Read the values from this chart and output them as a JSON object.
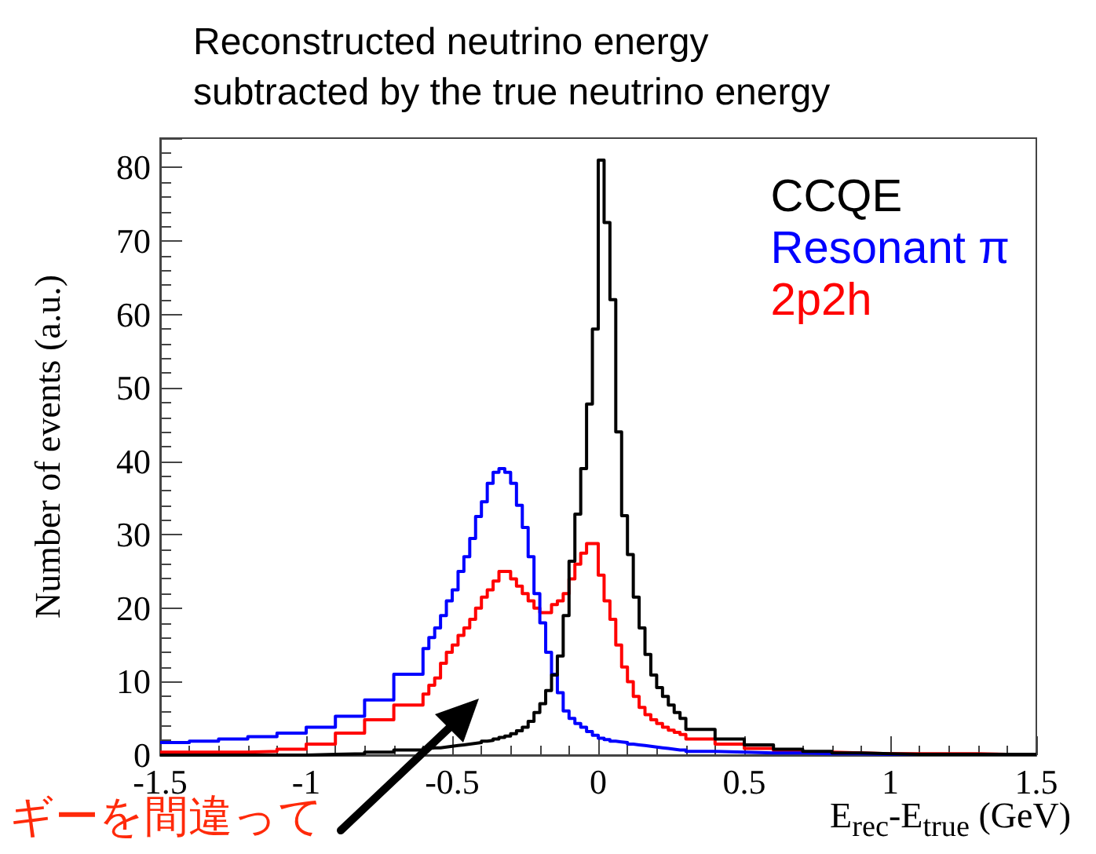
{
  "chart_data": {
    "type": "histogram",
    "title": "Reconstructed neutrino energy\nsubtracted by the true neutrino energy",
    "xlabel": "E$_{rec}$-E$_{true}$ (GeV)",
    "ylabel": "Number of events (a.u.)",
    "annotations": [
      "ギーを間違って"
    ],
    "bins": [
      -1.5,
      -1.4,
      -1.3,
      -1.2,
      -1.1,
      -1.0,
      -0.9,
      -0.8,
      -0.7,
      -0.6,
      -0.58,
      -0.56,
      -0.54,
      -0.52,
      -0.5,
      -0.48,
      -0.46,
      -0.44,
      -0.42,
      -0.4,
      -0.38,
      -0.36,
      -0.34,
      -0.32,
      -0.3,
      -0.28,
      -0.26,
      -0.24,
      -0.22,
      -0.2,
      -0.18,
      -0.16,
      -0.14,
      -0.12,
      -0.1,
      -0.08,
      -0.06,
      -0.04,
      -0.02,
      0,
      0.02,
      0.04,
      0.06,
      0.08,
      0.1,
      0.12,
      0.14,
      0.16,
      0.18,
      0.2,
      0.22,
      0.24,
      0.26,
      0.28,
      0.3,
      0.4,
      0.5,
      0.6,
      0.7,
      0.8,
      0.9,
      1.0,
      1.1,
      1.2,
      1.3,
      1.4,
      1.5
    ],
    "series": [
      {
        "name": "CCQE",
        "color": "#000000",
        "values": [
          0,
          0,
          0,
          0,
          0,
          0.1,
          0.2,
          0.4,
          0.7,
          0.9,
          1.0,
          1.0,
          1.1,
          1.2,
          1.3,
          1.4,
          1.5,
          1.6,
          1.7,
          1.9,
          2.0,
          2.2,
          2.4,
          2.6,
          2.9,
          3.3,
          3.8,
          4.6,
          5.8,
          7,
          8.8,
          10.9,
          13.5,
          19,
          26.4,
          32.8,
          39,
          47.8,
          58,
          81,
          72.5,
          62,
          44,
          32.6,
          27.3,
          21.5,
          17.3,
          13.7,
          10.9,
          9.2,
          8,
          6.8,
          5.8,
          5,
          3.5,
          2.2,
          1.4,
          0.8,
          0.5,
          0.3,
          0.2,
          0.1,
          0.1,
          0.1,
          0.1,
          0.1
        ]
      },
      {
        "name": "Resonant π",
        "color": "#0000ff",
        "values": [
          1.7,
          1.9,
          2.2,
          2.5,
          3,
          3.8,
          5.3,
          7.5,
          11,
          14.5,
          16,
          17.3,
          19,
          21,
          22.5,
          25,
          27,
          29.5,
          32.5,
          34.5,
          37,
          38.5,
          39,
          38.5,
          37,
          34,
          31,
          27,
          22,
          18,
          14,
          11,
          8.5,
          6,
          5,
          4.3,
          3.8,
          3.2,
          2.7,
          2.3,
          2.1,
          1.9,
          1.8,
          1.7,
          1.5,
          1.4,
          1.3,
          1.2,
          1.1,
          1.0,
          0.9,
          0.8,
          0.7,
          0.7,
          0.5,
          0.4,
          0.3,
          0.3,
          0.2,
          0.2,
          0.1,
          0.1,
          0.1,
          0.1,
          0.1,
          0.1
        ]
      },
      {
        "name": "2p2h",
        "color": "#ff0000",
        "values": [
          0.4,
          0.4,
          0.4,
          0.5,
          0.8,
          1.5,
          3,
          4.8,
          6.8,
          8.3,
          9.5,
          10.5,
          12.5,
          14,
          15,
          16.3,
          17.3,
          18.5,
          20,
          21.5,
          22.5,
          23.7,
          25,
          25,
          24,
          23,
          22,
          21,
          20,
          19.4,
          19.4,
          20.5,
          21,
          22,
          24,
          26,
          27.5,
          28.8,
          28.8,
          24.5,
          21,
          18.5,
          15,
          12,
          10,
          8,
          6.5,
          5.5,
          4.8,
          4.3,
          3.8,
          3.4,
          3.1,
          2.8,
          2.2,
          1.5,
          0.9,
          0.6,
          0.4,
          0.3,
          0.2,
          0.2,
          0.2,
          0.2,
          0.1,
          0.1
        ]
      }
    ],
    "xlim": [
      -1.5,
      1.5
    ],
    "xticks": [
      -1.5,
      -1,
      -0.5,
      0,
      0.5,
      1,
      1.5
    ],
    "ylim": [
      0,
      84
    ],
    "yticks": [
      0,
      10,
      20,
      30,
      40,
      50,
      60,
      70,
      80
    ],
    "legend": "top right",
    "grid": false
  }
}
